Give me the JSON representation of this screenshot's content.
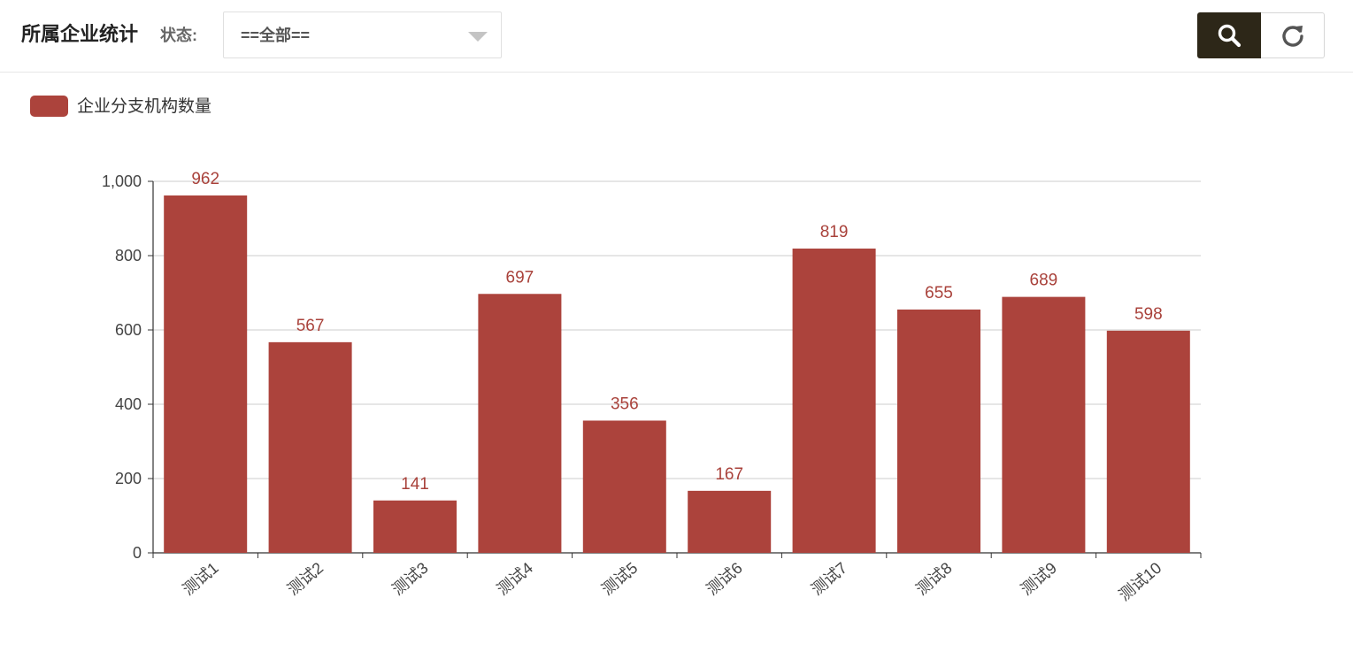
{
  "header": {
    "title": "所属企业统计",
    "status_label": "状态:",
    "status_select": {
      "selected": "==全部=="
    },
    "search_icon": "search-icon",
    "reset_icon": "refresh-icon"
  },
  "colors": {
    "bar": "#ac433c",
    "search_button_bg": "#2d2718",
    "bar_label": "#a9423b"
  },
  "chart_data": {
    "type": "bar",
    "title": "",
    "xlabel": "",
    "ylabel": "",
    "categories": [
      "测试1",
      "测试2",
      "测试3",
      "测试4",
      "测试5",
      "测试6",
      "测试7",
      "测试8",
      "测试9",
      "测试10"
    ],
    "series": [
      {
        "name": "企业分支机构数量",
        "values": [
          962,
          567,
          141,
          697,
          356,
          167,
          819,
          655,
          689,
          598
        ]
      }
    ],
    "ylim": [
      0,
      1000
    ],
    "yticks": [
      0,
      200,
      400,
      600,
      800,
      1000
    ],
    "ytick_labels": [
      "0",
      "200",
      "400",
      "600",
      "800",
      "1,000"
    ],
    "grid": true,
    "legend_position": "top-left",
    "data_labels": true
  }
}
